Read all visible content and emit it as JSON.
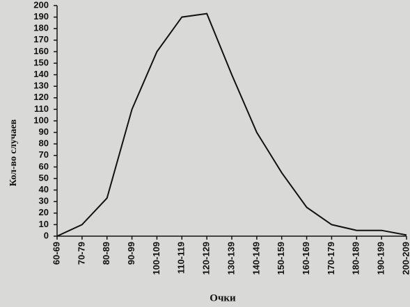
{
  "chart_data": {
    "type": "line",
    "x_label": "Очки",
    "y_label": "Кол-во случаев",
    "categories": [
      "60-69",
      "70-79",
      "80-89",
      "90-99",
      "100-109",
      "110-119",
      "120-129",
      "130-139",
      "140-149",
      "150-159",
      "160-169",
      "170-179",
      "180-189",
      "190-199",
      "200-209"
    ],
    "values": [
      0,
      10,
      33,
      110,
      160,
      190,
      193,
      140,
      90,
      55,
      25,
      10,
      5,
      5,
      1
    ],
    "color": "#111111",
    "ylim": [
      0,
      200
    ],
    "yticks": [
      0,
      10,
      20,
      30,
      40,
      50,
      60,
      70,
      80,
      90,
      100,
      110,
      120,
      130,
      140,
      150,
      160,
      170,
      180,
      190,
      200
    ],
    "grid": false
  }
}
